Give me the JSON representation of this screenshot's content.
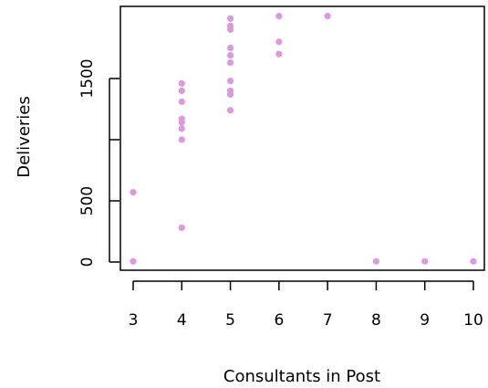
{
  "chart_data": {
    "type": "scatter",
    "xlabel": "Consultants in Post",
    "ylabel": "Deliveries",
    "xlim": [
      3,
      10
    ],
    "ylim": [
      0,
      2000
    ],
    "x_ticks": [
      3,
      4,
      5,
      6,
      7,
      8,
      9,
      10
    ],
    "y_ticks": [
      0,
      500,
      1000,
      1500
    ],
    "y_tick_labels": [
      "0",
      "500",
      "",
      "1500"
    ],
    "grid": false,
    "point_color": "#dd99dd",
    "points": [
      {
        "x": 3,
        "y": 570
      },
      {
        "x": 3,
        "y": 5
      },
      {
        "x": 4,
        "y": 1460
      },
      {
        "x": 4,
        "y": 1400
      },
      {
        "x": 4,
        "y": 1310
      },
      {
        "x": 4,
        "y": 1170
      },
      {
        "x": 4,
        "y": 1140
      },
      {
        "x": 4,
        "y": 1090
      },
      {
        "x": 4,
        "y": 1000
      },
      {
        "x": 4,
        "y": 280
      },
      {
        "x": 5,
        "y": 1990
      },
      {
        "x": 5,
        "y": 1930
      },
      {
        "x": 5,
        "y": 1900
      },
      {
        "x": 5,
        "y": 1750
      },
      {
        "x": 5,
        "y": 1690
      },
      {
        "x": 5,
        "y": 1630
      },
      {
        "x": 5,
        "y": 1480
      },
      {
        "x": 5,
        "y": 1400
      },
      {
        "x": 5,
        "y": 1370
      },
      {
        "x": 5,
        "y": 1240
      },
      {
        "x": 6,
        "y": 2010
      },
      {
        "x": 6,
        "y": 1800
      },
      {
        "x": 6,
        "y": 1700
      },
      {
        "x": 7,
        "y": 2010
      },
      {
        "x": 8,
        "y": 5
      },
      {
        "x": 9,
        "y": 5
      },
      {
        "x": 10,
        "y": 5
      }
    ]
  }
}
